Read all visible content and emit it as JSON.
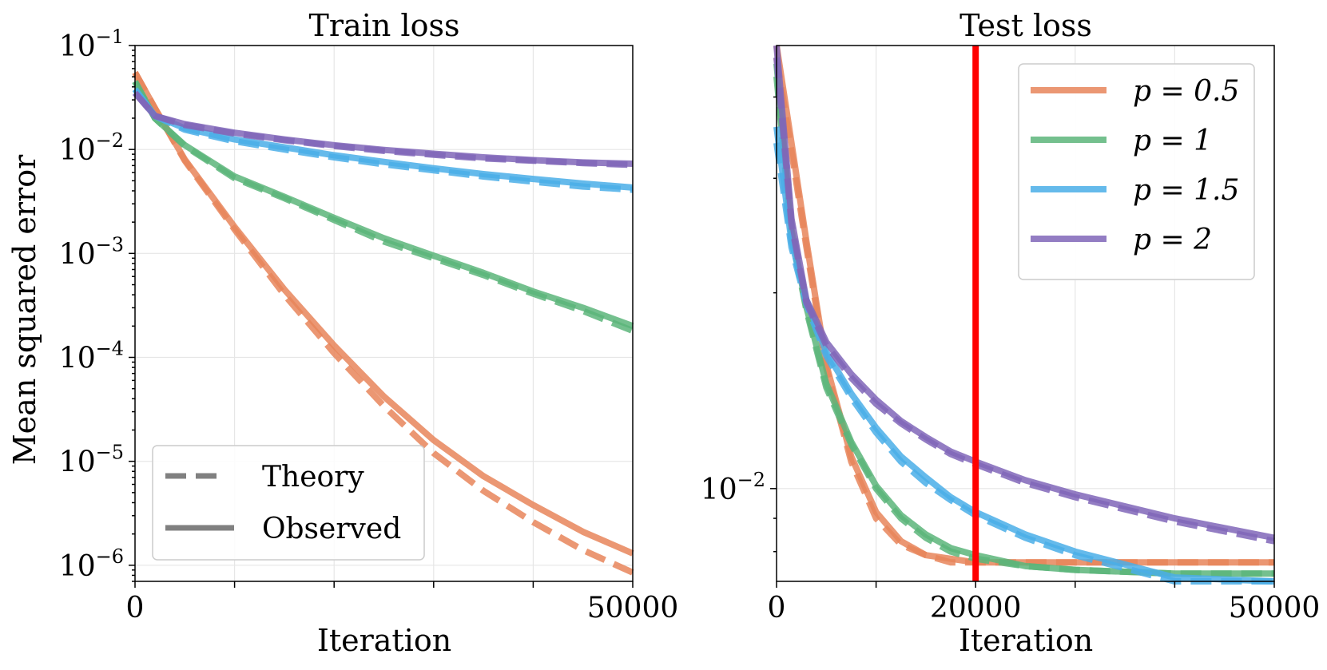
{
  "chart_data": [
    {
      "type": "line",
      "title": "Train loss",
      "xlabel": "Iteration",
      "ylabel": "Mean squared error",
      "xscale": "linear",
      "yscale": "log",
      "xlim": [
        0,
        50000
      ],
      "ylim": [
        7e-07,
        0.1
      ],
      "xticks": [
        0,
        50000
      ],
      "xtick_labels": [
        "0",
        "50000"
      ],
      "yticks": [
        1e-06,
        1e-05,
        0.0001,
        0.001,
        0.01,
        0.1
      ],
      "ytick_labels": [
        [
          "10",
          "−6"
        ],
        [
          "10",
          "−5"
        ],
        [
          "10",
          "−4"
        ],
        [
          "10",
          "−3"
        ],
        [
          "10",
          "−2"
        ],
        [
          "10",
          "−1"
        ]
      ],
      "grid": true,
      "legend": {
        "position": "bottom-left",
        "entries": [
          {
            "label": "Theory",
            "style": "dashed",
            "color": "#808080"
          },
          {
            "label": "Observed",
            "style": "solid",
            "color": "#808080"
          }
        ]
      },
      "series": [
        {
          "name": "p = 0.5",
          "color": "#e8855a",
          "style": "solid",
          "x": [
            0,
            2000,
            5000,
            10000,
            15000,
            20000,
            25000,
            30000,
            35000,
            40000,
            45000,
            50000
          ],
          "values": [
            0.055,
            0.025,
            0.008,
            0.0018,
            0.00045,
            0.00013,
            4.2e-05,
            1.6e-05,
            7.2e-06,
            3.8e-06,
            2.1e-06,
            1.3e-06
          ]
        },
        {
          "name": "p = 0.5",
          "color": "#e8855a",
          "style": "dashed",
          "x": [
            0,
            2000,
            5000,
            10000,
            15000,
            20000,
            25000,
            30000,
            35000,
            40000,
            45000,
            50000
          ],
          "values": [
            0.055,
            0.025,
            0.0078,
            0.0017,
            0.0004,
            0.00011,
            3.4e-05,
            1.2e-05,
            5.2e-06,
            2.6e-06,
            1.4e-06,
            8.5e-07
          ]
        },
        {
          "name": "p = 1",
          "color": "#5cb57a",
          "style": "solid",
          "x": [
            0,
            2000,
            5000,
            10000,
            15000,
            20000,
            25000,
            30000,
            35000,
            40000,
            45000,
            50000
          ],
          "values": [
            0.045,
            0.02,
            0.011,
            0.0055,
            0.0035,
            0.0022,
            0.0014,
            0.00095,
            0.00065,
            0.00043,
            0.0003,
            0.0002
          ]
        },
        {
          "name": "p = 1",
          "color": "#5cb57a",
          "style": "dashed",
          "x": [
            0,
            2000,
            5000,
            10000,
            15000,
            20000,
            25000,
            30000,
            35000,
            40000,
            45000,
            50000
          ],
          "values": [
            0.045,
            0.02,
            0.0108,
            0.0053,
            0.0034,
            0.0021,
            0.0013,
            0.0009,
            0.00062,
            0.00041,
            0.00028,
            0.00018
          ]
        },
        {
          "name": "p = 1.5",
          "color": "#4aaee8",
          "style": "solid",
          "x": [
            0,
            2000,
            5000,
            10000,
            15000,
            20000,
            25000,
            30000,
            35000,
            40000,
            45000,
            50000
          ],
          "values": [
            0.038,
            0.021,
            0.016,
            0.0125,
            0.0105,
            0.0088,
            0.0076,
            0.0066,
            0.0058,
            0.0052,
            0.0047,
            0.0043
          ]
        },
        {
          "name": "p = 1.5",
          "color": "#4aaee8",
          "style": "dashed",
          "x": [
            0,
            2000,
            5000,
            10000,
            15000,
            20000,
            25000,
            30000,
            35000,
            40000,
            45000,
            50000
          ],
          "values": [
            0.038,
            0.021,
            0.0155,
            0.012,
            0.01,
            0.0084,
            0.0072,
            0.0063,
            0.0055,
            0.0049,
            0.0044,
            0.0041
          ]
        },
        {
          "name": "p = 2",
          "color": "#8066b8",
          "style": "solid",
          "x": [
            0,
            2000,
            5000,
            10000,
            15000,
            20000,
            25000,
            30000,
            35000,
            40000,
            45000,
            50000
          ],
          "values": [
            0.035,
            0.021,
            0.0175,
            0.0145,
            0.0125,
            0.011,
            0.0099,
            0.0091,
            0.0084,
            0.0079,
            0.0075,
            0.0073
          ]
        },
        {
          "name": "p = 2",
          "color": "#8066b8",
          "style": "dashed",
          "x": [
            0,
            2000,
            5000,
            10000,
            15000,
            20000,
            25000,
            30000,
            35000,
            40000,
            45000,
            50000
          ],
          "values": [
            0.035,
            0.021,
            0.0172,
            0.0142,
            0.0123,
            0.0108,
            0.0097,
            0.0089,
            0.0082,
            0.0078,
            0.0074,
            0.0071
          ]
        }
      ]
    },
    {
      "type": "line",
      "title": "Test loss",
      "xlabel": "Iteration",
      "ylabel": "",
      "xscale": "linear",
      "yscale": "log",
      "xlim": [
        0,
        50000
      ],
      "ylim": [
        0.0072,
        0.048
      ],
      "xticks": [
        0,
        20000,
        50000
      ],
      "xtick_labels": [
        "0",
        "20000",
        "50000"
      ],
      "yticks": [
        0.01
      ],
      "ytick_labels": [
        [
          "10",
          "−2"
        ]
      ],
      "grid": true,
      "vline": {
        "x": 20000,
        "color": "#ff0000"
      },
      "legend": {
        "position": "top-right",
        "entries": [
          {
            "label": "p = 0.5",
            "style": "solid",
            "color": "#e8855a"
          },
          {
            "label": "p = 1",
            "style": "solid",
            "color": "#5cb57a"
          },
          {
            "label": "p = 1.5",
            "style": "solid",
            "color": "#4aaee8"
          },
          {
            "label": "p = 2",
            "style": "solid",
            "color": "#8066b8"
          }
        ]
      },
      "series": [
        {
          "name": "p = 0.5",
          "color": "#e8855a",
          "style": "solid",
          "x": [
            0,
            1500,
            3000,
            5000,
            7500,
            10000,
            12500,
            15000,
            17500,
            20000,
            25000,
            30000,
            40000,
            50000
          ],
          "values": [
            0.048,
            0.034,
            0.024,
            0.0155,
            0.0112,
            0.0092,
            0.0083,
            0.0079,
            0.0078,
            0.0077,
            0.0077,
            0.0077,
            0.0077,
            0.0077
          ]
        },
        {
          "name": "p = 0.5",
          "color": "#e8855a",
          "style": "dashed",
          "x": [
            0,
            1500,
            3000,
            5000,
            7500,
            10000,
            12500,
            15000,
            17500,
            20000,
            25000,
            30000,
            40000,
            50000
          ],
          "values": [
            0.046,
            0.033,
            0.0235,
            0.0153,
            0.011,
            0.009,
            0.0082,
            0.0079,
            0.0077,
            0.0077,
            0.0077,
            0.0077,
            0.0077,
            0.0077
          ]
        },
        {
          "name": "p = 1",
          "color": "#5cb57a",
          "style": "solid",
          "x": [
            0,
            1500,
            3000,
            5000,
            7500,
            10000,
            12500,
            15000,
            17500,
            20000,
            25000,
            30000,
            40000,
            50000
          ],
          "values": [
            0.045,
            0.025,
            0.019,
            0.0145,
            0.0118,
            0.0101,
            0.0091,
            0.0085,
            0.0081,
            0.0079,
            0.0076,
            0.0075,
            0.0074,
            0.0074
          ]
        },
        {
          "name": "p = 1",
          "color": "#5cb57a",
          "style": "dashed",
          "x": [
            0,
            1500,
            3000,
            5000,
            7500,
            10000,
            12500,
            15000,
            17500,
            20000,
            25000,
            30000,
            40000,
            50000
          ],
          "values": [
            0.043,
            0.0245,
            0.0188,
            0.0143,
            0.0117,
            0.01,
            0.009,
            0.0084,
            0.008,
            0.0078,
            0.0076,
            0.0075,
            0.0074,
            0.0074
          ]
        },
        {
          "name": "p = 1.5",
          "color": "#4aaee8",
          "style": "solid",
          "x": [
            0,
            1500,
            3000,
            5000,
            7500,
            10000,
            12500,
            15000,
            17500,
            20000,
            25000,
            30000,
            40000,
            50000
          ],
          "values": [
            0.036,
            0.024,
            0.0195,
            0.0162,
            0.014,
            0.0124,
            0.0112,
            0.0104,
            0.0097,
            0.0092,
            0.0085,
            0.008,
            0.0073,
            0.0069
          ]
        },
        {
          "name": "p = 1.5",
          "color": "#4aaee8",
          "style": "dashed",
          "x": [
            0,
            1500,
            3000,
            5000,
            7500,
            10000,
            12500,
            15000,
            17500,
            20000,
            25000,
            30000,
            40000,
            50000
          ],
          "values": [
            0.034,
            0.0235,
            0.0192,
            0.016,
            0.0138,
            0.0122,
            0.011,
            0.0102,
            0.0096,
            0.0091,
            0.0084,
            0.0079,
            0.0072,
            0.0068
          ]
        },
        {
          "name": "p = 2",
          "color": "#8066b8",
          "style": "solid",
          "x": [
            0,
            1500,
            3000,
            5000,
            7500,
            10000,
            12500,
            15000,
            17500,
            20000,
            25000,
            30000,
            40000,
            50000
          ],
          "values": [
            0.048,
            0.026,
            0.0195,
            0.0168,
            0.015,
            0.0137,
            0.0127,
            0.012,
            0.0114,
            0.011,
            0.0103,
            0.0098,
            0.009,
            0.0084
          ]
        },
        {
          "name": "p = 2",
          "color": "#8066b8",
          "style": "dashed",
          "x": [
            0,
            1500,
            3000,
            5000,
            7500,
            10000,
            12500,
            15000,
            17500,
            20000,
            25000,
            30000,
            40000,
            50000
          ],
          "values": [
            0.046,
            0.0255,
            0.0193,
            0.0166,
            0.0148,
            0.0135,
            0.0126,
            0.0119,
            0.0113,
            0.0109,
            0.0102,
            0.0097,
            0.0089,
            0.0083
          ]
        }
      ]
    }
  ]
}
